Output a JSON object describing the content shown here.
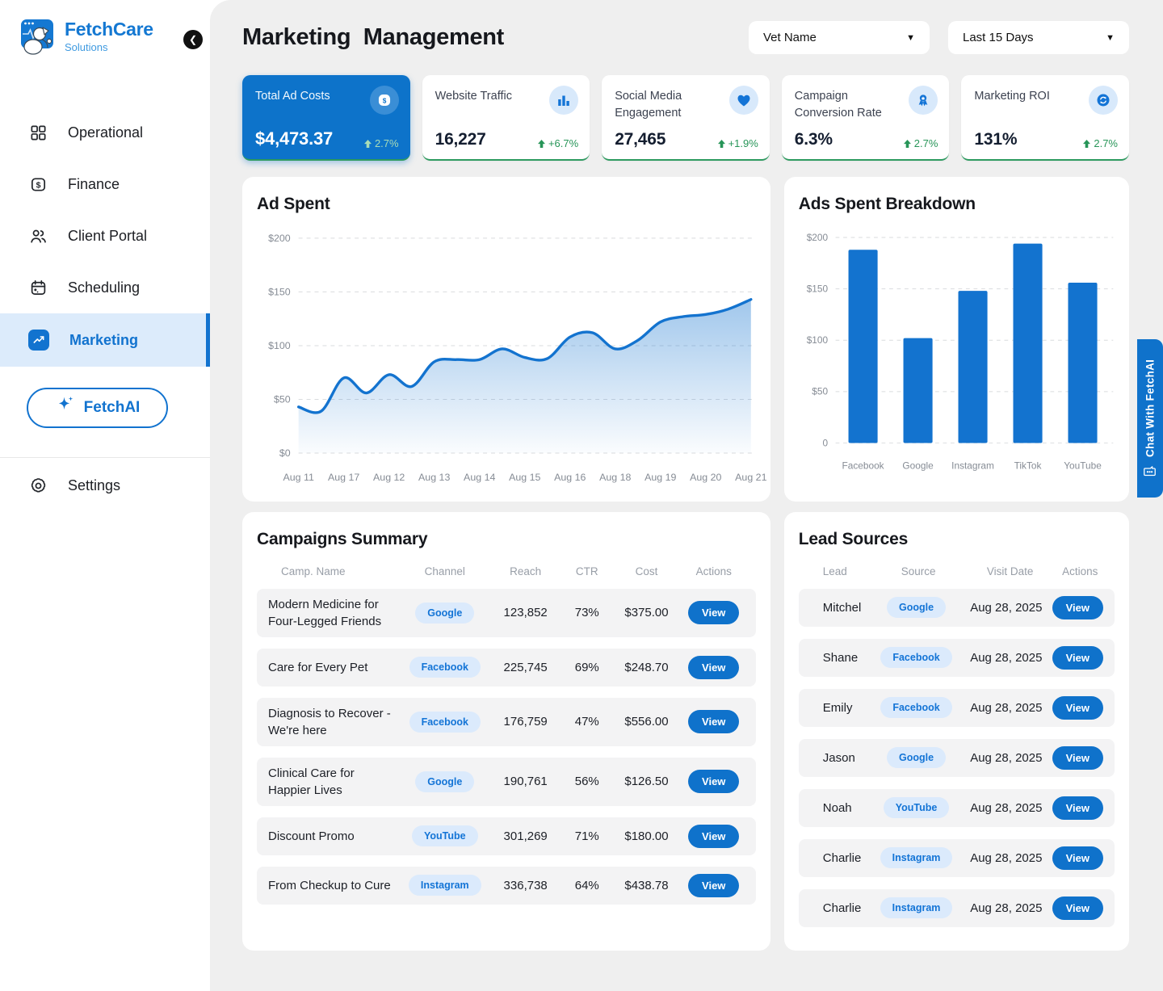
{
  "sidebar": {
    "logo": {
      "brand": "FetchCare",
      "sub": "Solutions",
      "icon": "dog-logo-icon"
    },
    "items": [
      {
        "label": "Operational",
        "icon": "grid-icon",
        "active": false
      },
      {
        "label": "Finance",
        "icon": "dollar-square-icon",
        "active": false
      },
      {
        "label": "Client Portal",
        "icon": "users-icon",
        "active": false
      },
      {
        "label": "Scheduling",
        "icon": "calendar-icon",
        "active": false
      },
      {
        "label": "Marketing",
        "icon": "trend-up-icon",
        "active": true
      }
    ],
    "ai_button": "FetchAI",
    "settings": {
      "label": "Settings",
      "icon": "gear-icon"
    }
  },
  "header": {
    "title": "Marketing  Management",
    "filters": [
      {
        "label": "Vet Name"
      },
      {
        "label": "Last 15 Days"
      }
    ]
  },
  "kpis": [
    {
      "title": "Total Ad Costs",
      "value": "$4,473.37",
      "delta": "2.7%",
      "icon": "dollar-badge-icon",
      "highlight": true
    },
    {
      "title": "Website Traffic",
      "value": "16,227",
      "delta": "+6.7%",
      "icon": "bar-chart-icon",
      "highlight": false
    },
    {
      "title": "Social Media Engagement",
      "value": "27,465",
      "delta": "+1.9%",
      "icon": "heart-icon",
      "highlight": false
    },
    {
      "title": "Campaign Conversion Rate",
      "value": "6.3%",
      "delta": "2.7%",
      "icon": "medal-icon",
      "highlight": false
    },
    {
      "title": "Marketing ROI",
      "value": "131%",
      "delta": "2.7%",
      "icon": "sync-icon",
      "highlight": false
    }
  ],
  "chart_data": [
    {
      "type": "line",
      "title": "Ad Spent",
      "x_labels": [
        "Aug 11",
        "Aug 17",
        "Aug 12",
        "Aug 13",
        "Aug 14",
        "Aug 15",
        "Aug 16",
        "Aug 18",
        "Aug 19",
        "Aug 20",
        "Aug 21"
      ],
      "values": [
        43,
        39,
        70,
        56,
        73,
        62,
        85,
        87,
        87,
        97,
        89,
        88,
        108,
        112,
        97,
        105,
        122,
        127,
        129,
        134,
        143
      ],
      "ylim": [
        0,
        200
      ],
      "yticks": [
        "$0",
        "$50",
        "$100",
        "$150",
        "$200"
      ],
      "ylabel": "",
      "xlabel": "",
      "grid": "dashed-horizontal",
      "legend": "none",
      "line_color": "#1373cf",
      "area_fill": true
    },
    {
      "type": "bar",
      "title": "Ads Spent Breakdown",
      "categories": [
        "Facebook",
        "Google",
        "Instagram",
        "TikTok",
        "YouTube"
      ],
      "values": [
        188,
        102,
        148,
        194,
        156
      ],
      "ylim": [
        0,
        200
      ],
      "yticks": [
        "0",
        "$50",
        "$100",
        "$150",
        "$200"
      ],
      "ylabel": "",
      "xlabel": "",
      "grid": "dashed-horizontal",
      "legend": "none",
      "bar_color": "#1373cf"
    }
  ],
  "campaigns": {
    "title": "Campaigns Summary",
    "columns": [
      "Camp. Name",
      "Channel",
      "Reach",
      "CTR",
      "Cost",
      "Actions"
    ],
    "action_label": "View",
    "rows": [
      {
        "name": "Modern Medicine for Four-Legged Friends",
        "channel": "Google",
        "reach": "123,852",
        "ctr": "73%",
        "cost": "$375.00"
      },
      {
        "name": "Care for Every Pet",
        "channel": "Facebook",
        "reach": "225,745",
        "ctr": "69%",
        "cost": "$248.70"
      },
      {
        "name": "Diagnosis to Recover - We're here",
        "channel": "Facebook",
        "reach": "176,759",
        "ctr": "47%",
        "cost": "$556.00"
      },
      {
        "name": "Clinical Care for Happier Lives",
        "channel": "Google",
        "reach": "190,761",
        "ctr": "56%",
        "cost": "$126.50"
      },
      {
        "name": "Discount Promo",
        "channel": "YouTube",
        "reach": "301,269",
        "ctr": "71%",
        "cost": "$180.00"
      },
      {
        "name": "From Checkup to Cure",
        "channel": "Instagram",
        "reach": "336,738",
        "ctr": "64%",
        "cost": "$438.78"
      }
    ]
  },
  "leads": {
    "title": "Lead Sources",
    "columns": [
      "Lead",
      "Source",
      "Visit Date",
      "Actions"
    ],
    "action_label": "View",
    "rows": [
      {
        "lead": "Mitchel",
        "source": "Google",
        "date": "Aug 28, 2025"
      },
      {
        "lead": "Shane",
        "source": "Facebook",
        "date": "Aug 28, 2025"
      },
      {
        "lead": "Emily",
        "source": "Facebook",
        "date": "Aug 28, 2025"
      },
      {
        "lead": "Jason",
        "source": "Google",
        "date": "Aug 28, 2025"
      },
      {
        "lead": "Noah",
        "source": "YouTube",
        "date": "Aug 28, 2025"
      },
      {
        "lead": "Charlie",
        "source": "Instagram",
        "date": "Aug 28, 2025"
      },
      {
        "lead": "Charlie",
        "source": "Instagram",
        "date": "Aug 28, 2025"
      }
    ]
  },
  "chat_tab": {
    "label": "Chat With FetchAI"
  },
  "colors": {
    "accent_blue": "#0f72cb",
    "positive_green": "#279558",
    "light_green_on_blue": "#a9dcb6",
    "chip_bg": "#dbeafc",
    "chip_text": "#1374d6",
    "active_nav_bg": "#dcebfb",
    "page_bg": "#efefef",
    "row_bg": "#f3f3f4"
  }
}
